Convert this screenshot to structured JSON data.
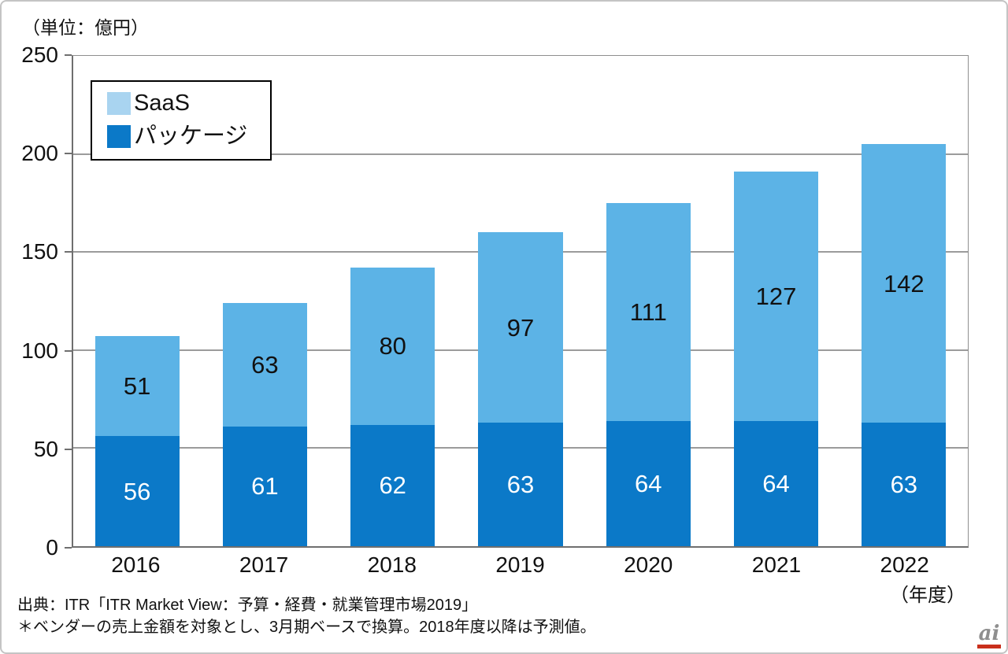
{
  "unit_label": "（単位：億円）",
  "chart_data": {
    "type": "bar",
    "stacked": true,
    "categories": [
      "2016",
      "2017",
      "2018",
      "2019",
      "2020",
      "2021",
      "2022"
    ],
    "series": [
      {
        "name": "SaaS",
        "values": [
          51,
          63,
          80,
          97,
          111,
          127,
          142
        ],
        "color": "#5CB3E6",
        "label_color": "#111111"
      },
      {
        "name": "パッケージ",
        "values": [
          56,
          61,
          62,
          63,
          64,
          64,
          63
        ],
        "color": "#0B79C8",
        "label_color": "#FFFFFF"
      }
    ],
    "totals": [
      107,
      124,
      142,
      160,
      175,
      191,
      205
    ],
    "ylim": [
      0,
      250
    ],
    "y_ticks": [
      0,
      50,
      100,
      150,
      200,
      250
    ],
    "x_axis_note": "（年度）",
    "grid": true,
    "legend_position": "top-left"
  },
  "legend": {
    "items": [
      {
        "label": "SaaS",
        "swatch_color": "#A9D4F0"
      },
      {
        "label": "パッケージ",
        "swatch_color": "#0B79C8"
      }
    ]
  },
  "footer": {
    "source": "出典：ITR「ITR Market View：予算・経費・就業管理市場2019」",
    "note": "＊ベンダーの売上金額を対象とし、3月期ベースで換算。2018年度以降は予測値。"
  },
  "watermark": {
    "text": "ai",
    "bar_color": "#C9301C"
  }
}
